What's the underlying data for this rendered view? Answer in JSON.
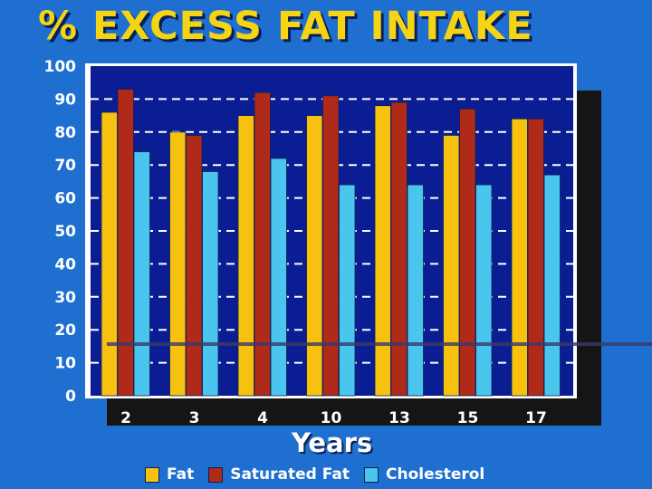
{
  "chart_data": {
    "type": "bar",
    "title": "% EXCESS FAT INTAKE",
    "xlabel": "Years",
    "ylabel": "",
    "ylim": [
      0,
      100
    ],
    "yticks": [
      0,
      10,
      20,
      30,
      40,
      50,
      60,
      70,
      80,
      90,
      100
    ],
    "categories": [
      "2",
      "3",
      "4",
      "10",
      "13",
      "15",
      "17"
    ],
    "series": [
      {
        "name": "Fat",
        "color": "#f7c110",
        "values": [
          86,
          80,
          85,
          85,
          88,
          79,
          84
        ]
      },
      {
        "name": "Saturated Fat",
        "color": "#b02a1a",
        "values": [
          93,
          79,
          92,
          91,
          89,
          87,
          84
        ]
      },
      {
        "name": "Cholesterol",
        "color": "#4ac6ee",
        "values": [
          74,
          68,
          72,
          64,
          64,
          64,
          67
        ]
      }
    ],
    "grid": true,
    "legend_position": "bottom"
  }
}
